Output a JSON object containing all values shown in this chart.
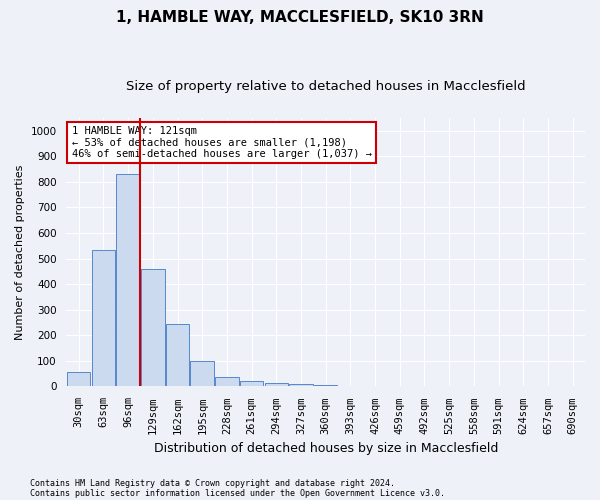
{
  "title": "1, HAMBLE WAY, MACCLESFIELD, SK10 3RN",
  "subtitle": "Size of property relative to detached houses in Macclesfield",
  "xlabel": "Distribution of detached houses by size in Macclesfield",
  "ylabel": "Number of detached properties",
  "bin_labels": [
    "30sqm",
    "63sqm",
    "96sqm",
    "129sqm",
    "162sqm",
    "195sqm",
    "228sqm",
    "261sqm",
    "294sqm",
    "327sqm",
    "360sqm",
    "393sqm",
    "426sqm",
    "459sqm",
    "492sqm",
    "525sqm",
    "558sqm",
    "591sqm",
    "624sqm",
    "657sqm",
    "690sqm"
  ],
  "bar_heights": [
    55,
    535,
    830,
    460,
    243,
    98,
    35,
    20,
    15,
    10,
    5,
    3,
    2,
    1,
    1,
    0,
    0,
    0,
    0,
    0,
    0
  ],
  "bar_color": "#ccdaf0",
  "bar_edge_color": "#5588cc",
  "annotation_text": "1 HAMBLE WAY: 121sqm\n← 53% of detached houses are smaller (1,198)\n46% of semi-detached houses are larger (1,037) →",
  "annotation_box_color": "#ffffff",
  "annotation_box_edge_color": "#cc0000",
  "vline_color": "#cc0000",
  "ylim": [
    0,
    1050
  ],
  "yticks": [
    0,
    100,
    200,
    300,
    400,
    500,
    600,
    700,
    800,
    900,
    1000
  ],
  "footnote1": "Contains HM Land Registry data © Crown copyright and database right 2024.",
  "footnote2": "Contains public sector information licensed under the Open Government Licence v3.0.",
  "background_color": "#eef2f8",
  "plot_bg_color": "#eef2f8",
  "grid_color": "#ffffff",
  "title_fontsize": 11,
  "subtitle_fontsize": 9.5,
  "xlabel_fontsize": 9,
  "ylabel_fontsize": 8,
  "tick_fontsize": 7.5,
  "annot_fontsize": 7.5,
  "footnote_fontsize": 6
}
